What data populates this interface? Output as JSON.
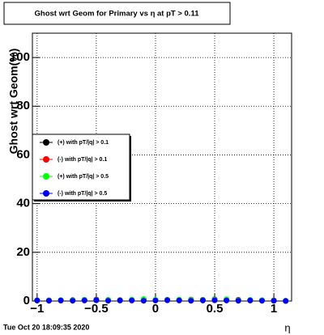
{
  "chart_data": {
    "type": "scatter",
    "title": "Ghost wrt Geom for Primary vs  η at pT > 0.11",
    "y_label": "Ghost wrt Geom(%)",
    "x_label": "η",
    "timestamp": "Tue Oct 20 18:09:35 2020",
    "x": [
      -1.0,
      -0.9,
      -0.8,
      -0.7,
      -0.6,
      -0.5,
      -0.4,
      -0.3,
      -0.2,
      -0.1,
      0.0,
      0.1,
      0.2,
      0.3,
      0.4,
      0.5,
      0.6,
      0.7,
      0.8,
      0.9,
      1.0,
      1.1
    ],
    "series": [
      {
        "name": "(+) with pT/|q| > 0.1",
        "color": "#000000",
        "values": [
          0.3,
          0.2,
          0.3,
          0.4,
          0.5,
          0.6,
          0.4,
          0.3,
          0.5,
          0.6,
          0.4,
          0.5,
          0.4,
          0.6,
          0.5,
          0.7,
          0.6,
          0.5,
          0.4,
          0.3,
          0.2,
          0.1
        ]
      },
      {
        "name": "(-) with pT/|q| > 0.1",
        "color": "#ff0000",
        "values": [
          0.2,
          0.3,
          0.2,
          0.3,
          0.4,
          0.5,
          0.3,
          0.4,
          0.4,
          0.5,
          0.3,
          0.4,
          0.5,
          0.5,
          0.4,
          0.6,
          0.5,
          0.4,
          0.3,
          0.2,
          0.3,
          0.1
        ]
      },
      {
        "name": "(+) with pT/|q| > 0.5",
        "color": "#00ff00",
        "values": [
          0.3,
          0.2,
          0.4,
          0.3,
          0.5,
          0.4,
          0.5,
          0.3,
          0.6,
          0.8,
          0.5,
          0.4,
          0.6,
          0.5,
          0.4,
          0.6,
          0.7,
          0.3,
          0.5,
          0.3,
          0.2,
          0.1
        ]
      },
      {
        "name": "(-) with pT/|q| > 0.5",
        "color": "#0000ff",
        "values": [
          0.2,
          0.1,
          0.2,
          0.1,
          0.2,
          0.3,
          0.1,
          0.2,
          0.2,
          0.1,
          0.2,
          0.3,
          0.2,
          0.1,
          0.2,
          0.3,
          0.2,
          0.1,
          0.2,
          0.1,
          0.1,
          0.0
        ]
      }
    ],
    "xlim": [
      -1.04,
      1.15
    ],
    "ylim": [
      0,
      110
    ],
    "xticks": [
      {
        "value": -1,
        "label": "−1"
      },
      {
        "value": -0.5,
        "label": "−0.5"
      },
      0,
      0.5,
      1
    ],
    "yticks": [
      0,
      20,
      40,
      60,
      80,
      100
    ],
    "grid": true
  }
}
